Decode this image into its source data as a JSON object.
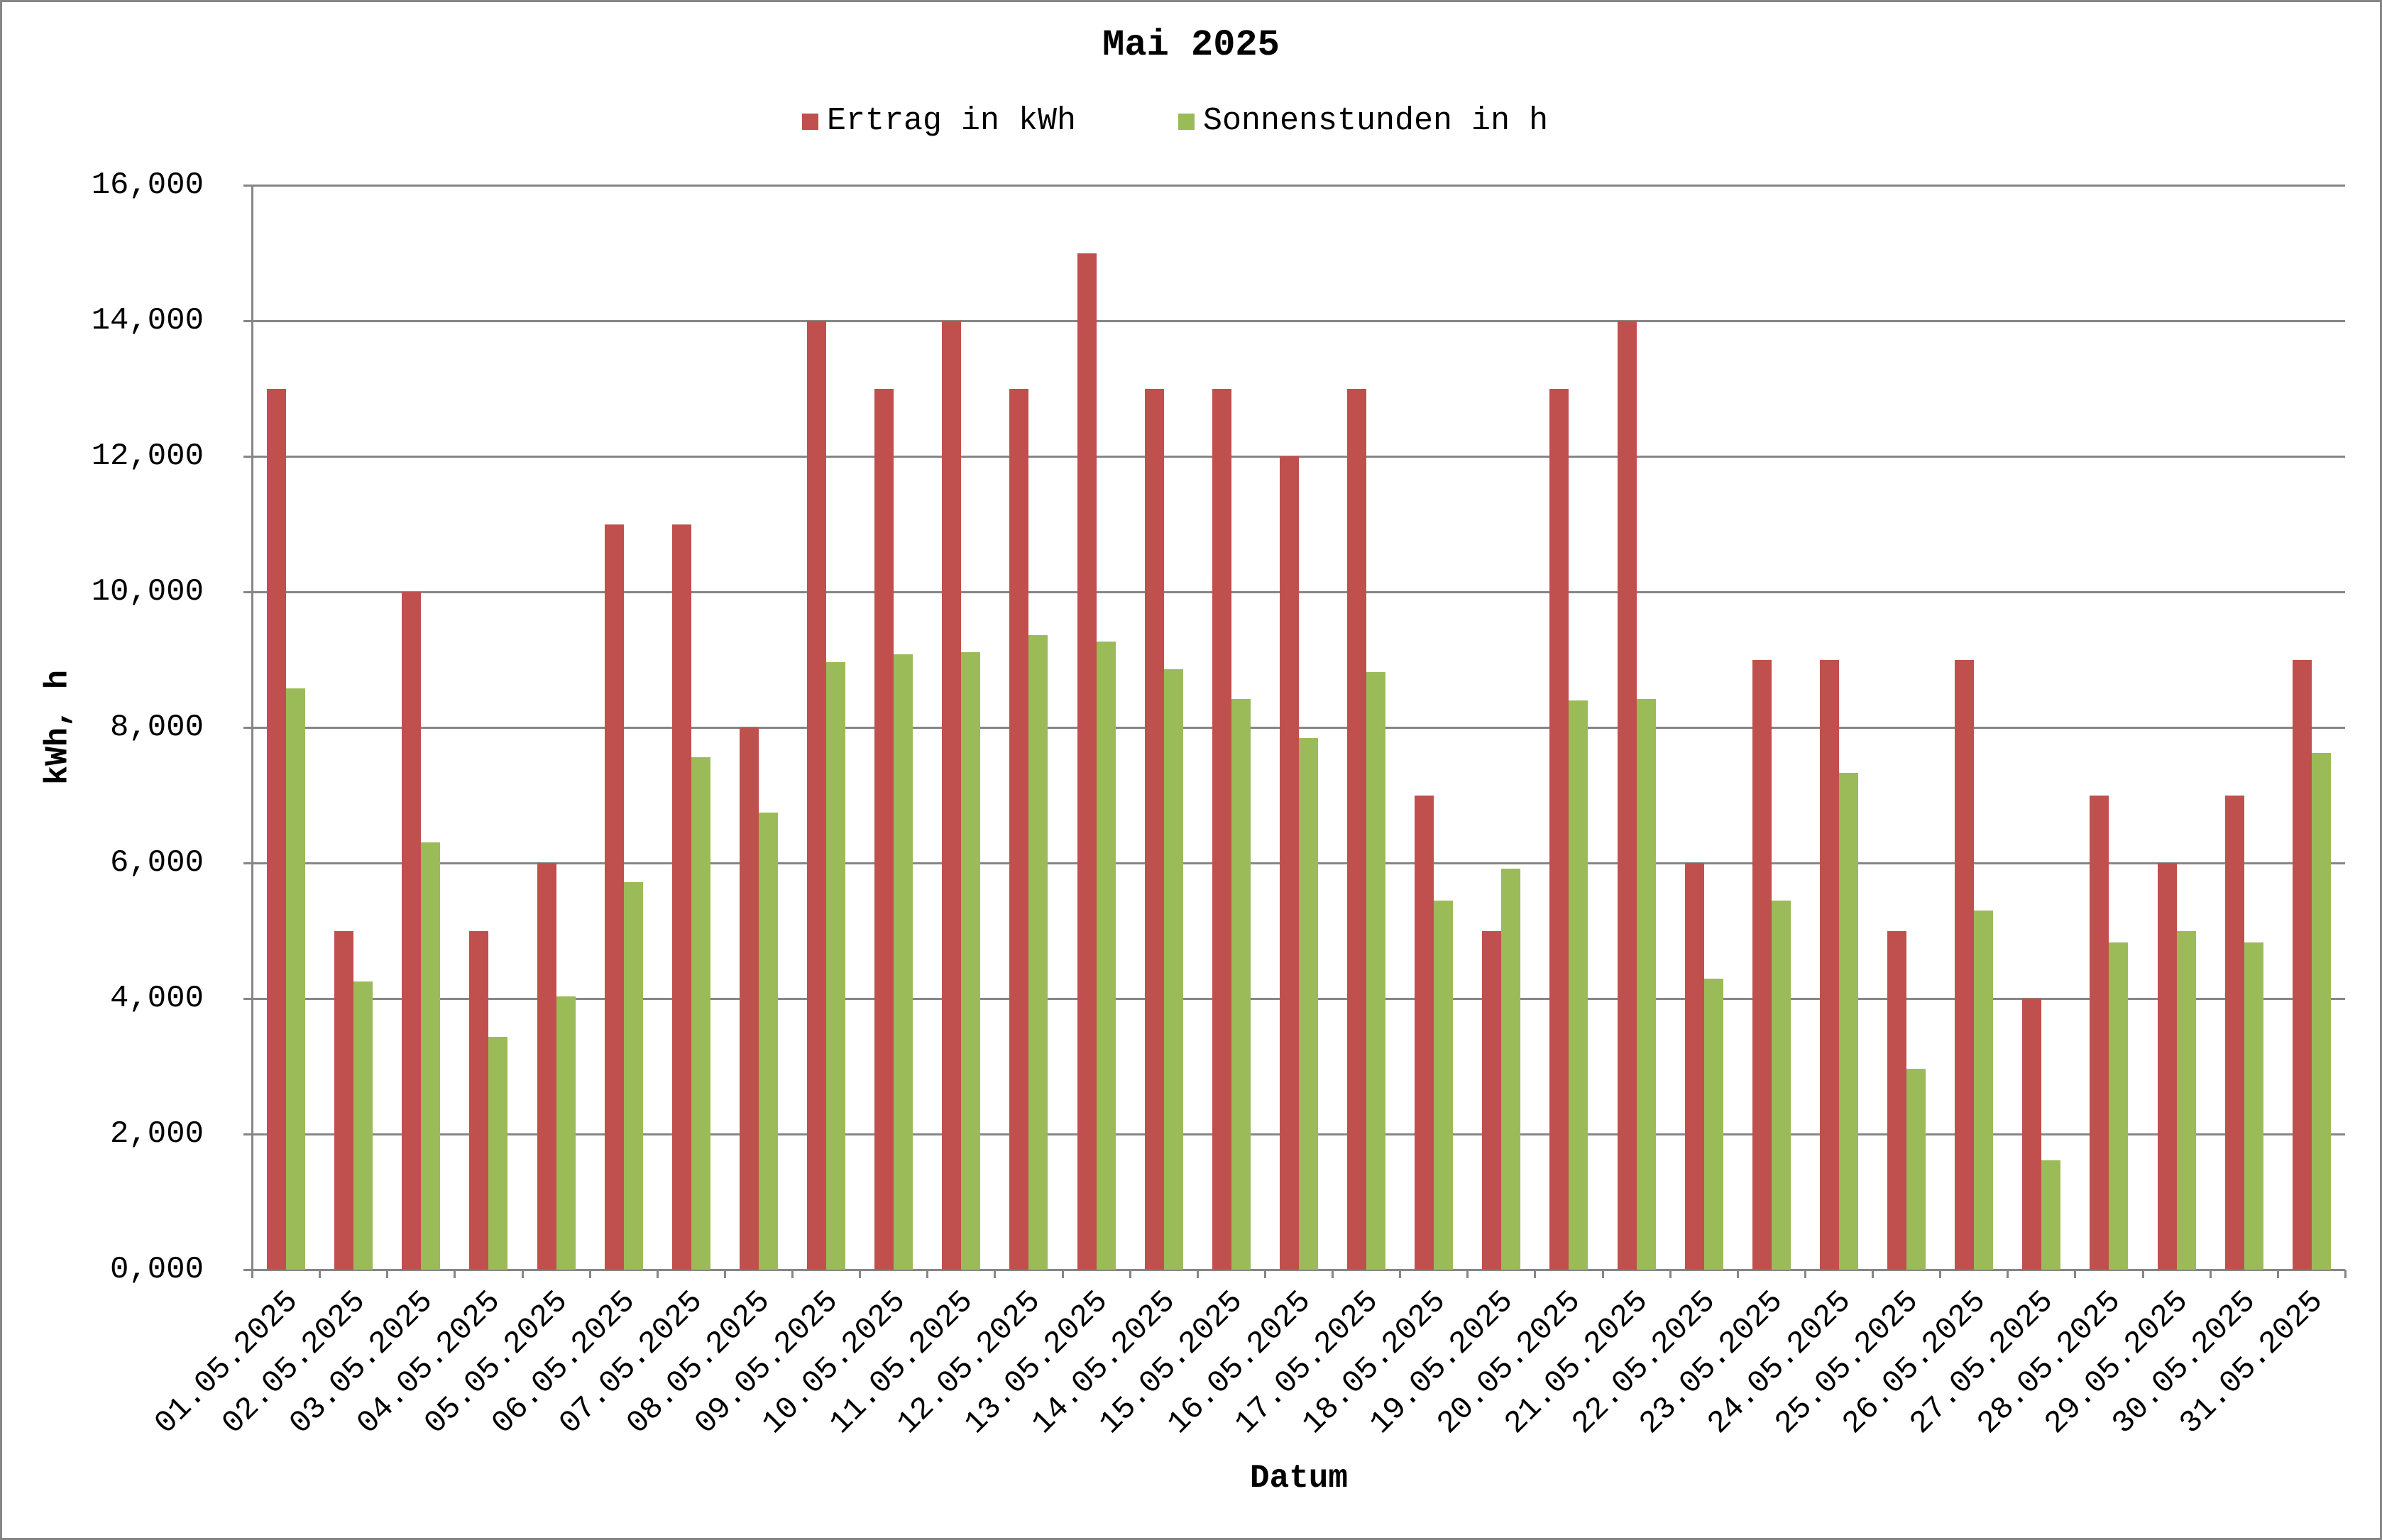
{
  "chart_data": {
    "type": "bar",
    "title": "Mai 2025",
    "xlabel": "Datum",
    "ylabel": "kWh, h",
    "ylim": [
      0,
      16
    ],
    "yticks": [
      0,
      2,
      4,
      6,
      8,
      10,
      12,
      14,
      16
    ],
    "ytick_labels": [
      "0,000",
      "2,000",
      "4,000",
      "6,000",
      "8,000",
      "10,000",
      "12,000",
      "14,000",
      "16,000"
    ],
    "grid": true,
    "legend_position": "top",
    "categories": [
      "01.05.2025",
      "02.05.2025",
      "03.05.2025",
      "04.05.2025",
      "05.05.2025",
      "06.05.2025",
      "07.05.2025",
      "08.05.2025",
      "09.05.2025",
      "10.05.2025",
      "11.05.2025",
      "12.05.2025",
      "13.05.2025",
      "14.05.2025",
      "15.05.2025",
      "16.05.2025",
      "17.05.2025",
      "18.05.2025",
      "19.05.2025",
      "20.05.2025",
      "21.05.2025",
      "22.05.2025",
      "23.05.2025",
      "24.05.2025",
      "25.05.2025",
      "26.05.2025",
      "27.05.2025",
      "28.05.2025",
      "29.05.2025",
      "30.05.2025",
      "31.05.2025"
    ],
    "series": [
      {
        "name": "Ertrag in kWh",
        "color": "#c0504d",
        "values": [
          13,
          5,
          10,
          5,
          6,
          11,
          11,
          8,
          14,
          13,
          14,
          13,
          15,
          13,
          13,
          12,
          13,
          7,
          5,
          13,
          14,
          6,
          9,
          9,
          5,
          9,
          4,
          7,
          6,
          7,
          9
        ]
      },
      {
        "name": "Sonnenstunden in h",
        "color": "#9bbb59",
        "values": [
          8.58,
          4.25,
          6.3,
          3.43,
          4.03,
          5.72,
          7.56,
          6.74,
          8.96,
          9.08,
          9.11,
          9.36,
          9.27,
          8.86,
          8.42,
          7.84,
          8.82,
          5.45,
          5.92,
          8.4,
          8.42,
          4.29,
          5.44,
          7.33,
          2.96,
          5.3,
          1.61,
          4.83,
          5.0,
          4.83,
          7.62
        ]
      }
    ]
  },
  "legend": {
    "items": [
      {
        "label": "Ertrag in kWh",
        "color": "#c0504d"
      },
      {
        "label": "Sonnenstunden in h",
        "color": "#9bbb59"
      }
    ]
  }
}
